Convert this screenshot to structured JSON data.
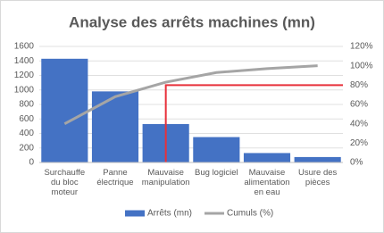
{
  "chart_data": {
    "type": "pareto",
    "title": "Analyse des arrêts machines (mn)",
    "categories": [
      "Surchauffe du bloc moteur",
      "Panne électrique",
      "Mauvaise manipulation",
      "Bug logiciel",
      "Mauvaise alimentation en eau",
      "Usure des pièces"
    ],
    "series": [
      {
        "name": "Arrêts (mn)",
        "color": "#4472c4",
        "kind": "bar",
        "values": [
          1430,
          980,
          530,
          350,
          130,
          75
        ]
      },
      {
        "name": "Cumuls (%)",
        "color": "#a5a5a5",
        "kind": "line",
        "axis": "y2",
        "values": [
          40,
          68,
          83,
          93,
          97,
          100
        ]
      }
    ],
    "ylim": [
      0,
      1600
    ],
    "yticks": [
      0,
      200,
      400,
      600,
      800,
      1000,
      1200,
      1400,
      1600
    ],
    "y2lim": [
      0,
      120
    ],
    "y2ticks": [
      {
        "value": 0,
        "label": "0%"
      },
      {
        "value": 20,
        "label": "20%"
      },
      {
        "value": 40,
        "label": "40%"
      },
      {
        "value": 60,
        "label": "60%"
      },
      {
        "value": 80,
        "label": "80%"
      },
      {
        "value": 100,
        "label": "100%"
      },
      {
        "value": 120,
        "label": "120%"
      }
    ],
    "reference_line": {
      "y2": 80,
      "category": "Mauvaise manipulation",
      "color": "#e8303a"
    },
    "grid": true,
    "legend": "bottom"
  }
}
